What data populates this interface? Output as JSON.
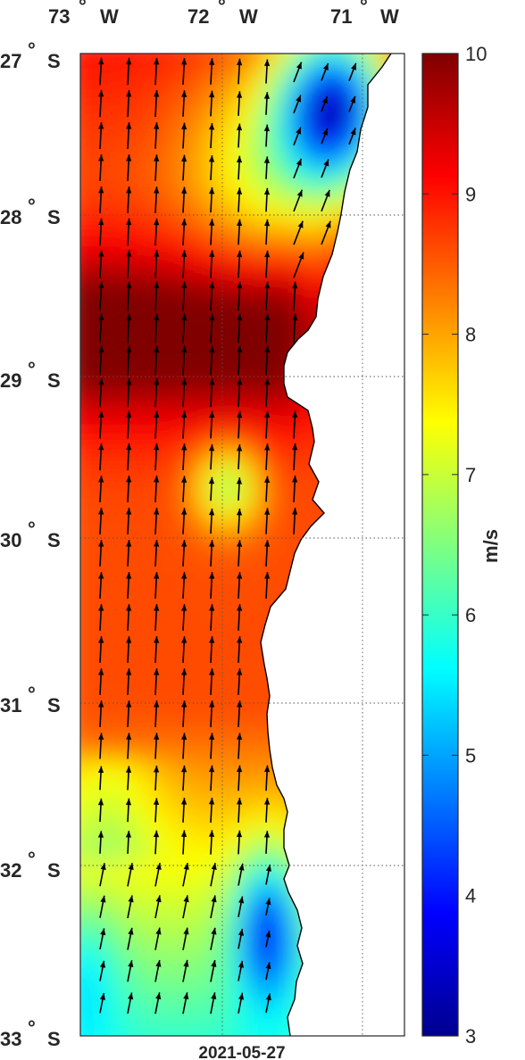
{
  "map": {
    "date": "2021-05-27",
    "lon_labels": [
      "73",
      "72",
      "71"
    ],
    "lon_hemisphere": "W",
    "lat_labels": [
      "27",
      "28",
      "29",
      "30",
      "31",
      "32",
      "33"
    ],
    "lat_hemisphere": "S",
    "degree_symbol": "°",
    "lon_range": [
      -73,
      -70.7
    ],
    "lat_range": [
      -33,
      -27
    ]
  },
  "colorbar": {
    "unit_label": "m/s",
    "min": 3,
    "max": 10,
    "ticks": [
      "3",
      "4",
      "5",
      "6",
      "7",
      "8",
      "9",
      "10"
    ],
    "colormap": "jet"
  },
  "colors": {
    "land": "#ffffff",
    "coastline": "#000000",
    "arrow": "#000000",
    "grid": "#555555"
  }
}
